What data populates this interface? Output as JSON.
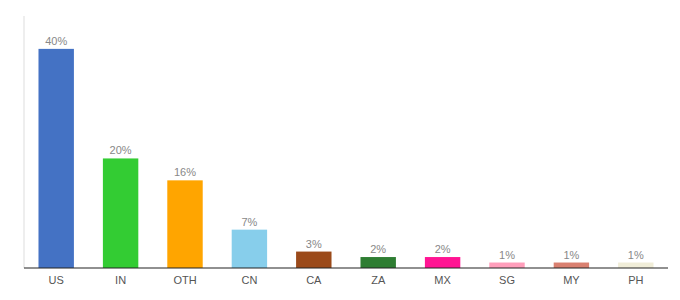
{
  "chart_data": {
    "type": "bar",
    "categories": [
      "US",
      "IN",
      "OTH",
      "CN",
      "CA",
      "ZA",
      "MX",
      "SG",
      "MY",
      "PH"
    ],
    "values": [
      40,
      20,
      16,
      7,
      3,
      2,
      2,
      1,
      1,
      1
    ],
    "value_labels": [
      "40%",
      "20%",
      "16%",
      "7%",
      "3%",
      "2%",
      "2%",
      "1%",
      "1%",
      "1%"
    ],
    "colors": [
      "#4472C4",
      "#33CC33",
      "#FFA500",
      "#87CEEB",
      "#9B4A1A",
      "#2E7D32",
      "#FF1493",
      "#FF9EBB",
      "#D98070",
      "#F0EDD8"
    ],
    "ylim": [
      0,
      46
    ],
    "data_labels": true,
    "tick_labels": "x",
    "grid": false
  }
}
